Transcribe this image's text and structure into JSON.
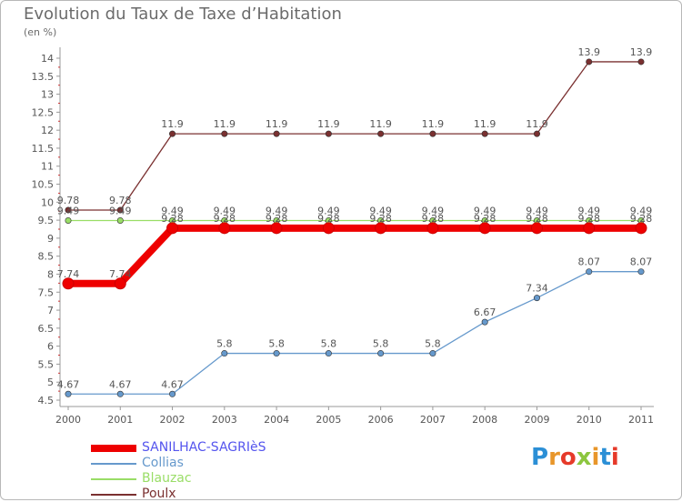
{
  "chart_title": "Evolution du Taux de Taxe d’Habitation",
  "unit_label": "(en %)",
  "logo_text": "Proxiti",
  "chart_data": {
    "type": "line",
    "title": "Evolution du Taux de Taxe d’Habitation",
    "ylabel": "(en %)",
    "xlabel": "",
    "ylim": [
      4.5,
      14.2
    ],
    "yticks": [
      "4.5",
      "5",
      "5.5",
      "6",
      "6.5",
      "7",
      "7.5",
      "8",
      "8.5",
      "9",
      "9.5",
      "10",
      "10.5",
      "11",
      "11.5",
      "12",
      "12.5",
      "13",
      "13.5",
      "14"
    ],
    "categories": [
      "2000",
      "2001",
      "2002",
      "2003",
      "2004",
      "2005",
      "2006",
      "2007",
      "2008",
      "2009",
      "2010",
      "2011"
    ],
    "grid": false,
    "legend_position": "bottom-left",
    "series": [
      {
        "name": "SANILHAC-SAGRIèS",
        "color": "#ee0000",
        "label_color": "#5555ee",
        "thick": true,
        "values": [
          7.74,
          7.74,
          9.28,
          9.28,
          9.28,
          9.28,
          9.28,
          9.28,
          9.28,
          9.28,
          9.28,
          9.28
        ],
        "labels": [
          "7.74",
          "7.74",
          "9.28",
          "9.28",
          "9.28",
          "9.28",
          "9.28",
          "9.28",
          "9.28",
          "9.28",
          "9.28",
          "9.28"
        ]
      },
      {
        "name": "Collias",
        "color": "#6699cc",
        "label_color": "#6699cc",
        "thick": false,
        "values": [
          4.67,
          4.67,
          4.67,
          5.8,
          5.8,
          5.8,
          5.8,
          5.8,
          6.67,
          7.34,
          8.07,
          8.07
        ],
        "labels": [
          "4.67",
          "4.67",
          "4.67",
          "5.8",
          "5.8",
          "5.8",
          "5.8",
          "5.8",
          "6.67",
          "7.34",
          "8.07",
          "8.07"
        ]
      },
      {
        "name": "Blauzac",
        "color": "#99dd66",
        "label_color": "#99dd66",
        "thick": false,
        "values": [
          9.49,
          9.49,
          9.49,
          9.49,
          9.49,
          9.49,
          9.49,
          9.49,
          9.49,
          9.49,
          9.49,
          9.49
        ],
        "labels": [
          "9.49",
          "9.49",
          "9.49",
          "9.49",
          "9.49",
          "9.49",
          "9.49",
          "9.49",
          "9.49",
          "9.49",
          "9.49",
          "9.49"
        ]
      },
      {
        "name": "Poulx",
        "color": "#7a3030",
        "label_color": "#7a3030",
        "thick": false,
        "values": [
          9.78,
          9.78,
          11.9,
          11.9,
          11.9,
          11.9,
          11.9,
          11.9,
          11.9,
          11.9,
          13.9,
          13.9
        ],
        "labels": [
          "9.78",
          "9.78",
          "11.9",
          "11.9",
          "11.9",
          "11.9",
          "11.9",
          "11.9",
          "11.9",
          "11.9",
          "13.9",
          "13.9"
        ]
      }
    ]
  }
}
